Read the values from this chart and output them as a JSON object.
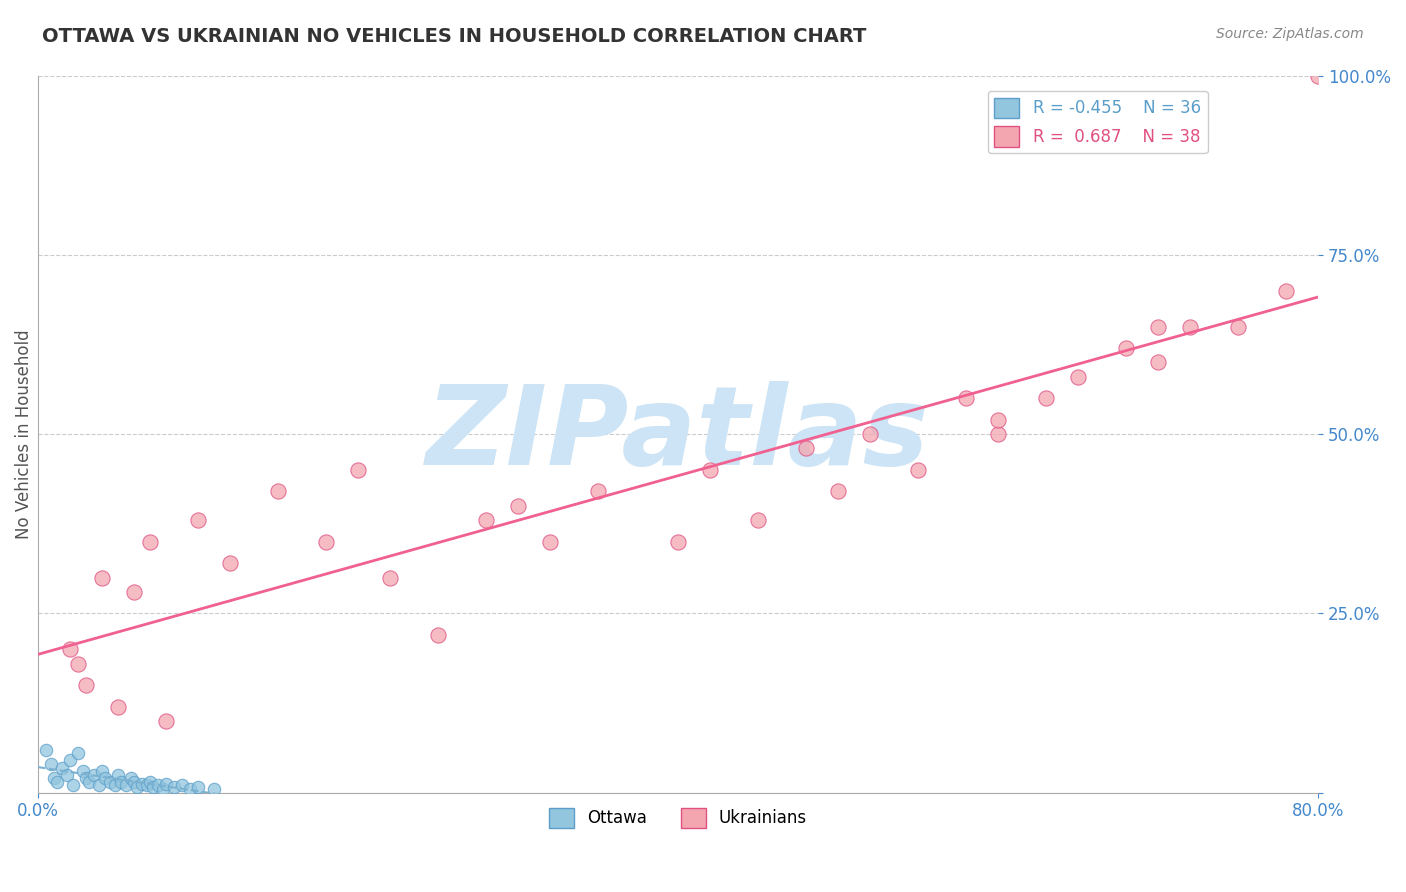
{
  "title": "OTTAWA VS UKRAINIAN NO VEHICLES IN HOUSEHOLD CORRELATION CHART",
  "source": "Source: ZipAtlas.com",
  "ylabel": "No Vehicles in Household",
  "xlim": [
    0.0,
    0.8
  ],
  "ylim": [
    0.0,
    1.0
  ],
  "ytick_positions": [
    0.0,
    0.25,
    0.5,
    0.75,
    1.0
  ],
  "ytick_labels": [
    "",
    "25.0%",
    "50.0%",
    "75.0%",
    "100.0%"
  ],
  "ottawa_R": -0.455,
  "ottawa_N": 36,
  "ukrainian_R": 0.687,
  "ukrainian_N": 38,
  "ottawa_color": "#92c5de",
  "ottawa_edge_color": "#5a9ec9",
  "ukrainian_color": "#f4a6b0",
  "ukrainian_edge_color": "#e05080",
  "ottawa_line_color": "#7ab0d0",
  "ukrainian_line_color": "#f06090",
  "grid_color": "#cccccc",
  "title_color": "#333333",
  "axis_label_color": "#555555",
  "tick_color": "#4488cc",
  "watermark_color": "#cce4f5",
  "watermark_text": "ZIPatlas",
  "background_color": "#ffffff",
  "ottawa_x": [
    0.005,
    0.008,
    0.01,
    0.012,
    0.015,
    0.018,
    0.02,
    0.022,
    0.025,
    0.028,
    0.03,
    0.032,
    0.035,
    0.038,
    0.04,
    0.042,
    0.045,
    0.048,
    0.05,
    0.052,
    0.055,
    0.058,
    0.06,
    0.062,
    0.065,
    0.068,
    0.07,
    0.072,
    0.075,
    0.078,
    0.08,
    0.085,
    0.09,
    0.095,
    0.1,
    0.11
  ],
  "ottawa_y": [
    0.06,
    0.04,
    0.02,
    0.015,
    0.035,
    0.025,
    0.045,
    0.01,
    0.055,
    0.03,
    0.02,
    0.015,
    0.025,
    0.01,
    0.03,
    0.02,
    0.015,
    0.01,
    0.025,
    0.015,
    0.01,
    0.02,
    0.015,
    0.008,
    0.012,
    0.01,
    0.015,
    0.008,
    0.01,
    0.005,
    0.012,
    0.008,
    0.01,
    0.005,
    0.008,
    0.005
  ],
  "ukrainian_x": [
    0.02,
    0.025,
    0.03,
    0.04,
    0.05,
    0.06,
    0.07,
    0.08,
    0.1,
    0.12,
    0.15,
    0.18,
    0.2,
    0.22,
    0.25,
    0.28,
    0.3,
    0.32,
    0.35,
    0.4,
    0.42,
    0.45,
    0.48,
    0.5,
    0.52,
    0.55,
    0.58,
    0.6,
    0.63,
    0.65,
    0.68,
    0.7,
    0.72,
    0.75,
    0.78,
    0.8,
    0.6,
    0.7
  ],
  "ukrainian_y": [
    0.2,
    0.18,
    0.15,
    0.3,
    0.12,
    0.28,
    0.35,
    0.1,
    0.38,
    0.32,
    0.42,
    0.35,
    0.45,
    0.3,
    0.22,
    0.38,
    0.4,
    0.35,
    0.42,
    0.35,
    0.45,
    0.38,
    0.48,
    0.42,
    0.5,
    0.45,
    0.55,
    0.5,
    0.55,
    0.58,
    0.62,
    0.6,
    0.65,
    0.65,
    0.7,
    1.0,
    0.52,
    0.65
  ]
}
